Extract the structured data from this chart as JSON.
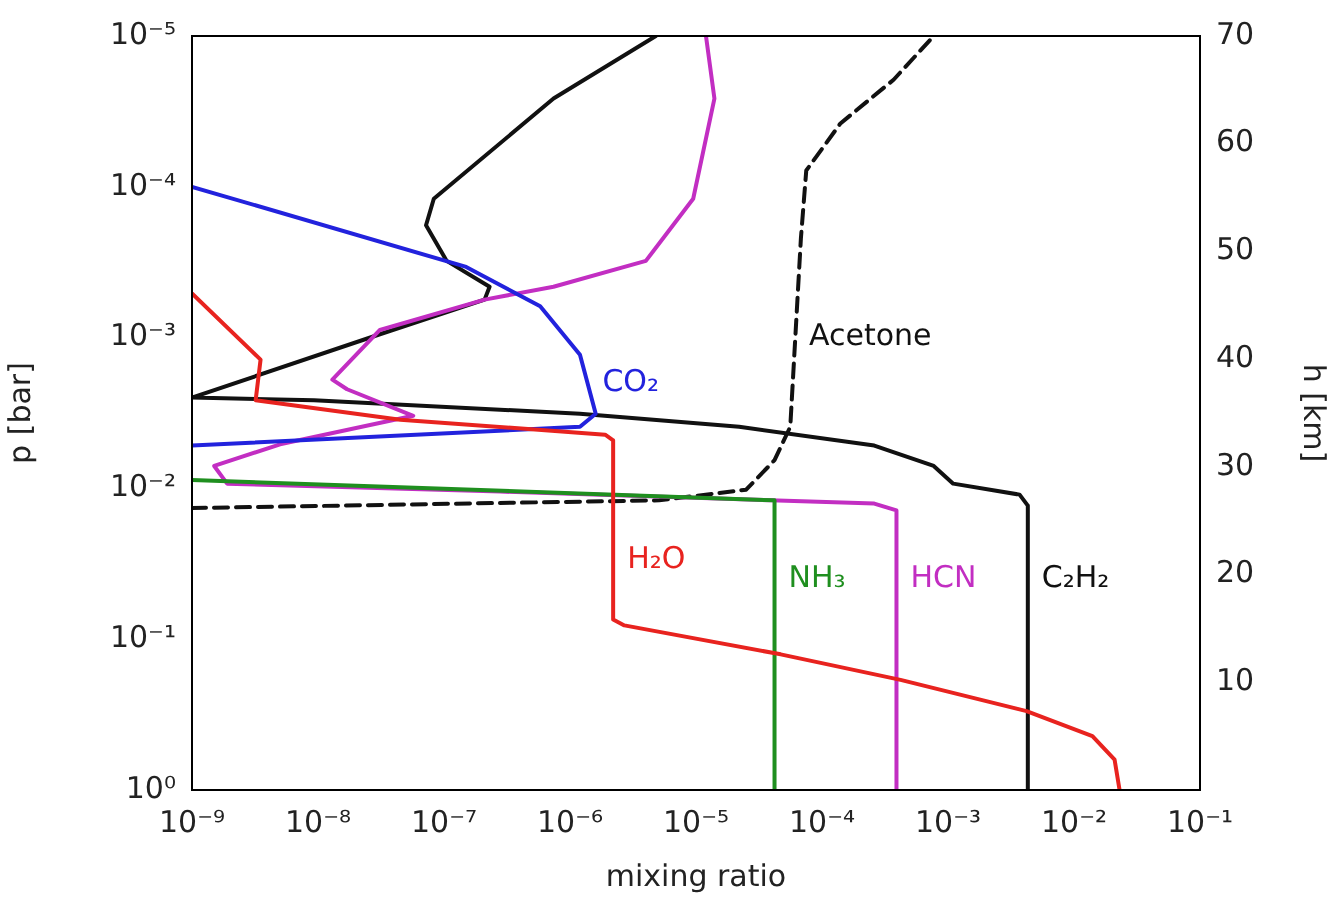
{
  "chart_data": {
    "type": "line",
    "xlabel": "mixing ratio",
    "ylabel": "p [bar]",
    "y2label": "h [km]",
    "log": "xy",
    "xlim": [
      1e-09,
      0.1
    ],
    "ylim": [
      1,
      1e-05
    ],
    "y2lim": [
      0,
      70
    ],
    "xticks": [
      {
        "value": 1e-09,
        "label": "10⁻⁹"
      },
      {
        "value": 1e-08,
        "label": "10⁻⁸"
      },
      {
        "value": 1e-07,
        "label": "10⁻⁷"
      },
      {
        "value": 1e-06,
        "label": "10⁻⁶"
      },
      {
        "value": 1e-05,
        "label": "10⁻⁵"
      },
      {
        "value": 0.0001,
        "label": "10⁻⁴"
      },
      {
        "value": 0.001,
        "label": "10⁻³"
      },
      {
        "value": 0.01,
        "label": "10⁻²"
      },
      {
        "value": 0.1,
        "label": "10⁻¹"
      }
    ],
    "yticks": [
      {
        "value": 1,
        "label": "10⁰"
      },
      {
        "value": 0.1,
        "label": "10⁻¹"
      },
      {
        "value": 0.01,
        "label": "10⁻²"
      },
      {
        "value": 0.001,
        "label": "10⁻³"
      },
      {
        "value": 0.0001,
        "label": "10⁻⁴"
      },
      {
        "value": 1e-05,
        "label": "10⁻⁵"
      }
    ],
    "y2ticks": [
      10,
      20,
      30,
      40,
      50,
      60,
      70
    ],
    "series": [
      {
        "color": "#e8231f",
        "x": [
          1e-09,
          3.5e-09,
          3.2e-09,
          4.5e-08,
          1.9e-06,
          2.2e-06,
          2.2e-06,
          2.7e-06,
          4.7e-05,
          0.00042,
          0.0042,
          0.014,
          0.021,
          0.023
        ],
        "values": [
          0.00051,
          0.0014,
          0.0026,
          0.0035,
          0.0044,
          0.0048,
          0.074,
          0.081,
          0.126,
          0.186,
          0.3,
          0.44,
          0.63,
          1
        ]
      },
      {
        "color": "#2222dd",
        "x": [
          1e-09,
          1.5e-07,
          5.8e-07,
          1.2e-06,
          1.6e-06,
          1.2e-06,
          1e-09
        ],
        "values": [
          0.0001,
          0.00034,
          0.00062,
          0.0013,
          0.0032,
          0.0039,
          0.0052
        ]
      },
      {
        "color": "#1f8f1f",
        "x": [
          1e-09,
          4.2e-05,
          4.2e-05
        ],
        "values": [
          0.0088,
          0.012,
          1
        ]
      },
      {
        "color": "#c22ec2",
        "x": [
          1.2e-05,
          1.4e-05,
          9.5e-06,
          4e-06,
          7.4e-07,
          2.1e-07,
          3.1e-08,
          1.3e-08,
          1.7e-08,
          5.7e-08,
          5e-09,
          1.5e-09,
          1.9e-09,
          2.8e-07,
          0.00026,
          0.00039,
          0.00039
        ],
        "values": [
          1e-05,
          2.6e-05,
          0.00012,
          0.00031,
          0.00046,
          0.00056,
          0.00089,
          0.0019,
          0.0022,
          0.0033,
          0.0051,
          0.0071,
          0.0093,
          0.0105,
          0.0126,
          0.014,
          1
        ]
      },
      {
        "color": "#111111",
        "x": [
          4.8e-06,
          7.4e-07,
          8.3e-08,
          7.2e-08,
          1.05e-07,
          2.3e-07,
          2.1e-07,
          3.1e-08,
          1e-09,
          9.3e-09,
          1.2e-06,
          2.2e-05,
          0.00026,
          0.00077,
          0.0011,
          0.0037,
          0.0043,
          0.0043
        ],
        "values": [
          1e-05,
          2.6e-05,
          0.00012,
          0.00018,
          0.00031,
          0.00046,
          0.00056,
          0.00095,
          0.0025,
          0.0026,
          0.0032,
          0.0039,
          0.0052,
          0.0071,
          0.0093,
          0.011,
          0.013,
          1
        ]
      },
      {
        "color": "#111111",
        "line_style": "dashed",
        "x": [
          1e-09,
          5.1e-06,
          2.5e-05,
          4.2e-05,
          5.6e-05,
          6.8e-05,
          7.5e-05,
          0.00014,
          0.00037,
          0.00077
        ],
        "values": [
          0.0135,
          0.012,
          0.0102,
          0.0065,
          0.0039,
          0.00022,
          7.8e-05,
          3.8e-05,
          1.95e-05,
          1e-05
        ]
      }
    ],
    "annotations": [
      {
        "text": "CO₂",
        "x": 1.4e-06,
        "y": 0.002
      },
      {
        "text": "Acetone",
        "x": 6.1e-05,
        "y": 0.001
      },
      {
        "text": "H₂O",
        "x": 2.2e-06,
        "y": 0.03
      },
      {
        "text": "NH₃",
        "x": 4.2e-05,
        "y": 0.04
      },
      {
        "text": "HCN",
        "x": 0.00039,
        "y": 0.04
      },
      {
        "text": "C₂H₂",
        "x": 0.0043,
        "y": 0.04
      }
    ],
    "legend": false
  }
}
